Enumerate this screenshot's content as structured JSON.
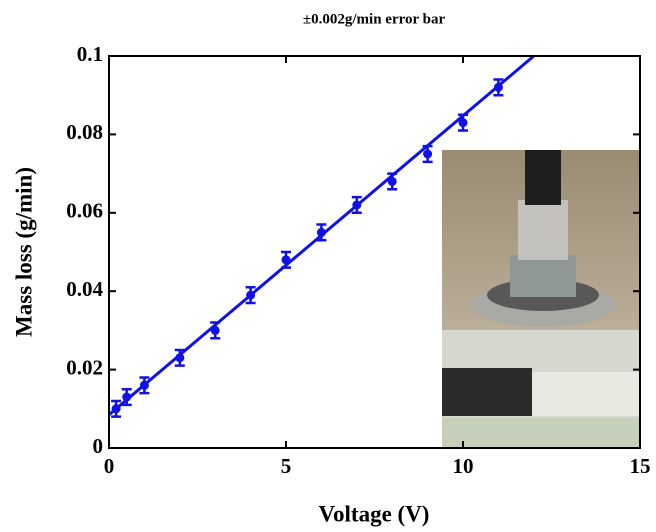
{
  "chart_data": {
    "type": "scatter",
    "title": "±0.002g/min error bar",
    "xlabel": "Voltage (V)",
    "ylabel": "Mass loss (g/min)",
    "xlim": [
      0,
      15
    ],
    "xticks": [
      0,
      5,
      10,
      15
    ],
    "ylim": [
      0,
      0.1
    ],
    "yticks": [
      0,
      0.02,
      0.04,
      0.06,
      0.08,
      0.1
    ],
    "series": [
      {
        "type": "errorbar",
        "color": "#1010e8",
        "x": [
          0.2,
          0.5,
          1,
          2,
          3,
          4,
          5,
          6,
          7,
          8,
          9,
          10,
          11
        ],
        "values": [
          0.01,
          0.013,
          0.016,
          0.023,
          0.03,
          0.039,
          0.048,
          0.055,
          0.062,
          0.068,
          0.075,
          0.083,
          0.092
        ],
        "errors": [
          0.002,
          0.002,
          0.002,
          0.002,
          0.002,
          0.002,
          0.002,
          0.002,
          0.002,
          0.002,
          0.002,
          0.002,
          0.002
        ]
      },
      {
        "type": "line",
        "color": "#1010e8",
        "x": [
          0,
          12
        ],
        "values": [
          0.0085,
          0.1
        ]
      }
    ]
  }
}
